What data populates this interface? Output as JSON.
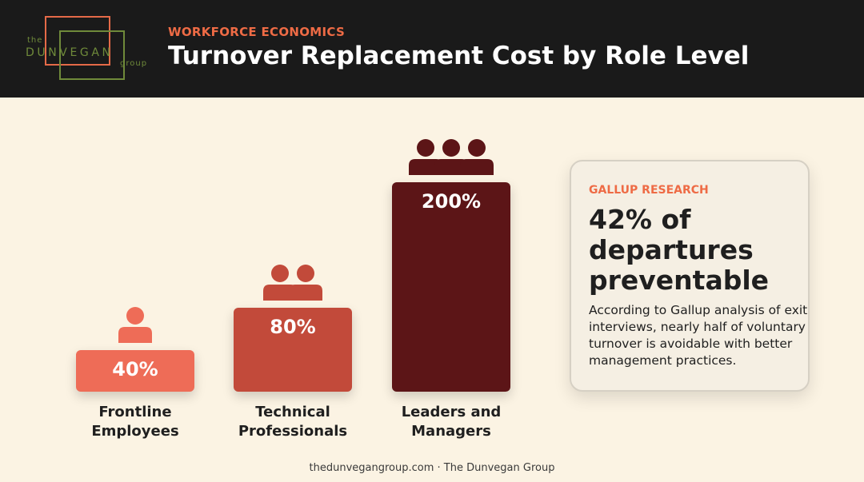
{
  "header": {
    "logo": {
      "the": "the",
      "name": "DUNVEGAN",
      "group": "group"
    },
    "kicker": "WORKFORCE ECONOMICS",
    "title": "Turnover Replacement Cost by Role Level"
  },
  "chart_data": {
    "type": "bar",
    "title": "Turnover Replacement Cost by Role Level",
    "categories": [
      "Frontline Employees",
      "Technical Professionals",
      "Leaders and Managers"
    ],
    "category_lines": [
      [
        "Frontline",
        "Employees"
      ],
      [
        "Technical",
        "Professionals"
      ],
      [
        "Leaders and",
        "Managers"
      ]
    ],
    "values": [
      40,
      80,
      200
    ],
    "value_labels": [
      "40%",
      "80%",
      "200%"
    ],
    "people_icons": [
      1,
      2,
      3
    ],
    "colors": [
      "#ee6c57",
      "#c24a3a",
      "#5c1517"
    ],
    "ylim": [
      0,
      200
    ]
  },
  "card": {
    "kicker": "GALLUP RESEARCH",
    "stat": "42% of departures preventable",
    "body": "According to Gallup analysis of exit interviews, nearly half of voluntary turnover is avoidable with better management practices."
  },
  "footer": "thedunvegangroup.com · The Dunvegan Group"
}
